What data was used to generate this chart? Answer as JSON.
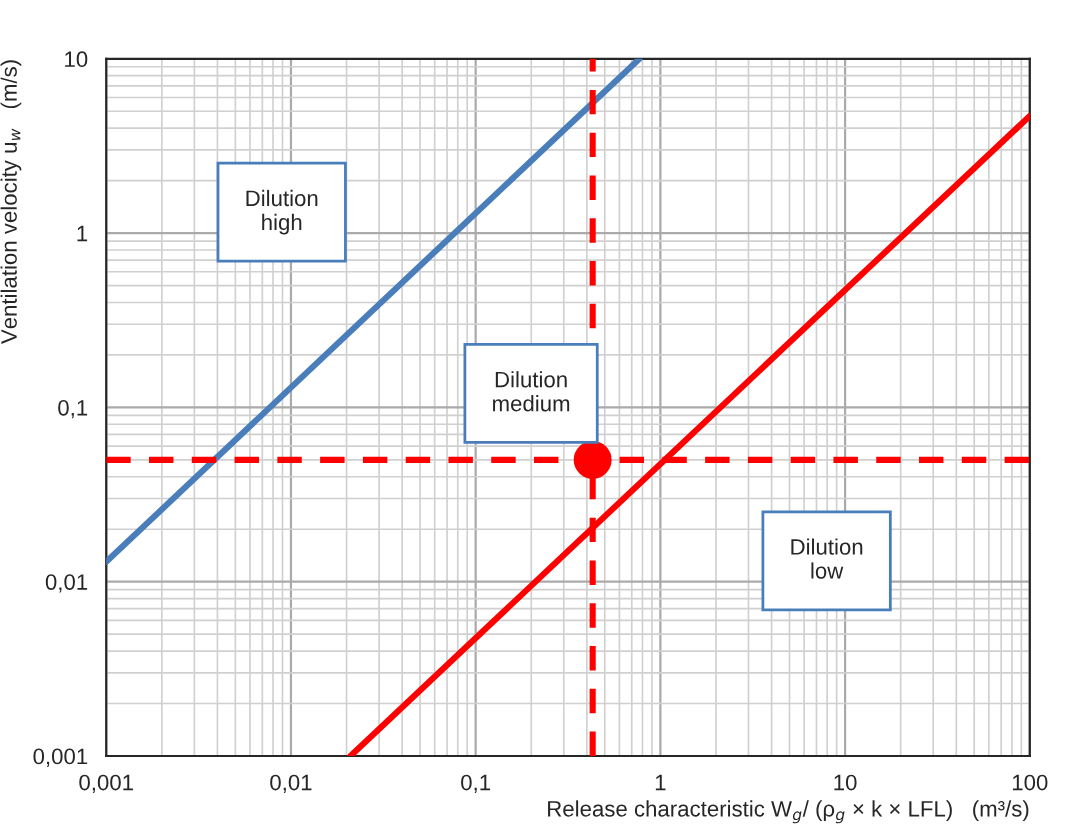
{
  "chart_data": {
    "type": "line",
    "xlabel": "Release characteristic W$_{g}$/ (ρ$_{g}$ × k × LFL)   (m³/s)",
    "ylabel": "Ventilation velocity u$_{w}$   (m/s)",
    "log": "xy",
    "xlim": [
      0.001,
      100
    ],
    "ylim": [
      0.001,
      10
    ],
    "xticks": [
      {
        "value": 0.001,
        "label": "0,001"
      },
      {
        "value": 0.01,
        "label": "0,01"
      },
      {
        "value": 0.1,
        "label": "0,1"
      },
      1,
      10,
      100
    ],
    "yticks": [
      {
        "value": 0.001,
        "label": "0,001"
      },
      {
        "value": 0.01,
        "label": "0,01"
      },
      {
        "value": 0.1,
        "label": "0,1"
      },
      1,
      10
    ],
    "grid": true,
    "line_style": "solid",
    "series": [
      {
        "color": "#4a7ebb",
        "x": [
          0.001,
          0.77
        ],
        "values": [
          0.013,
          10
        ]
      },
      {
        "color": "#ff0000",
        "x": [
          0.021,
          100
        ],
        "values": [
          0.001,
          4.7
        ]
      },
      {
        "type": "scatter",
        "color": "#ff0000",
        "marker": "circle",
        "x": [
          0.43
        ],
        "values": [
          0.05
        ]
      }
    ],
    "ref_lines": [
      {
        "axis": "x",
        "value": 0.43,
        "color": "#ff0000",
        "line_style": "dashed"
      },
      {
        "axis": "y",
        "value": 0.05,
        "color": "#ff0000",
        "line_style": "dashed"
      }
    ],
    "annotations": [
      "Dilution\nhigh",
      "Dilution\nmedium",
      "Dilution\nlow"
    ]
  }
}
